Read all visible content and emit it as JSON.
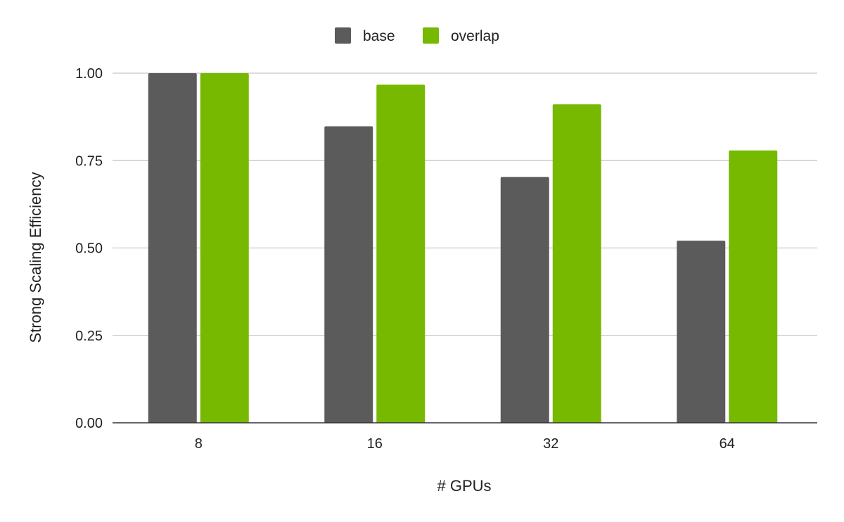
{
  "chart_data": {
    "type": "bar",
    "title": "",
    "xlabel": "# GPUs",
    "ylabel": "Strong Scaling Efficiency",
    "categories": [
      "8",
      "16",
      "32",
      "64"
    ],
    "series": [
      {
        "name": "base",
        "color": "#5b5b5b",
        "values": [
          1.0,
          0.848,
          0.703,
          0.521
        ]
      },
      {
        "name": "overlap",
        "color": "#76b900",
        "values": [
          1.0,
          0.967,
          0.911,
          0.779
        ]
      }
    ],
    "ylim": [
      0,
      1.0
    ],
    "yticks": [
      "0.00",
      "0.25",
      "0.50",
      "0.75",
      "1.00"
    ],
    "ytick_values": [
      0,
      0.25,
      0.5,
      0.75,
      1.0
    ],
    "grid": true,
    "legend_position": "top-center"
  }
}
